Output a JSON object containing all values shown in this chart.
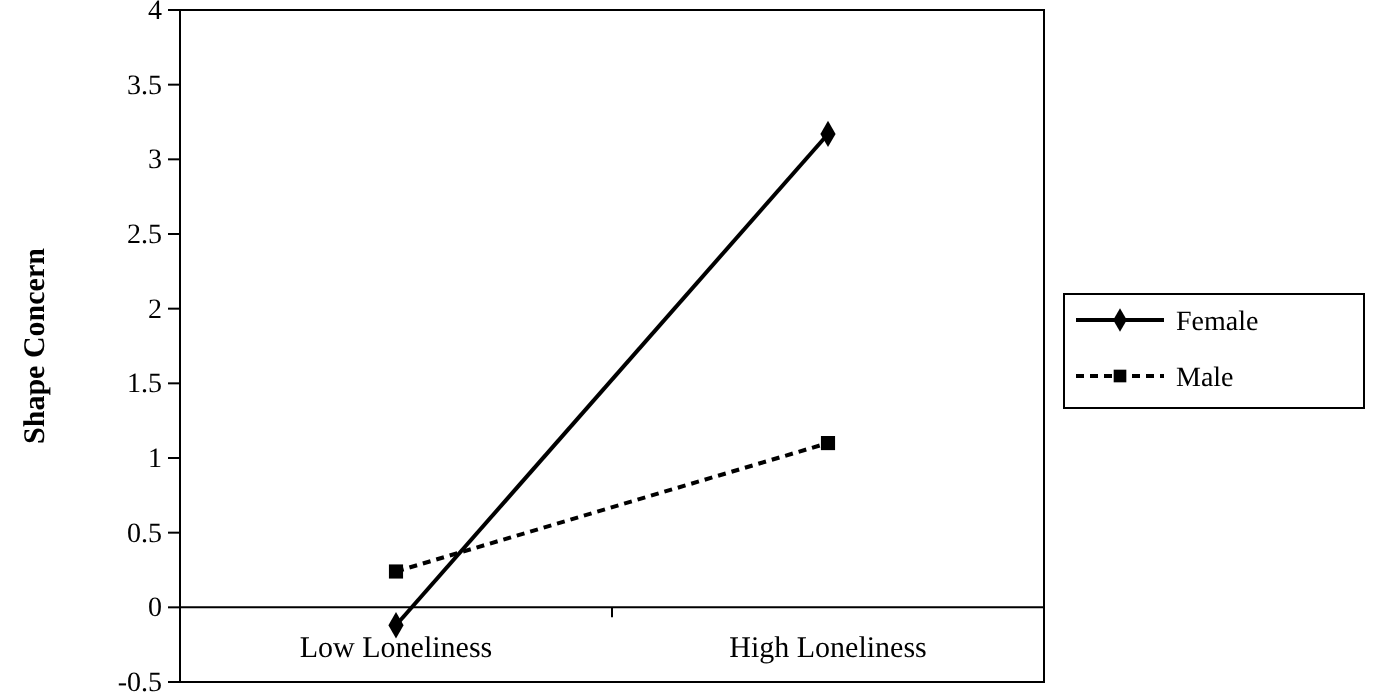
{
  "chart_data": {
    "type": "line",
    "ylabel": "Shape Concern",
    "categories": [
      "Low Loneliness",
      "High Loneliness"
    ],
    "ylim": [
      -0.5,
      4
    ],
    "yticks": [
      -0.5,
      0,
      0.5,
      1,
      1.5,
      2,
      2.5,
      3,
      3.5,
      4
    ],
    "legend": "right",
    "series": [
      {
        "name": "Female",
        "color": "#000000",
        "values": [
          -0.12,
          3.17
        ],
        "marker": "diamond",
        "line_style": "solid"
      },
      {
        "name": "Male",
        "color": "#000000",
        "values": [
          0.24,
          1.1
        ],
        "marker": "square",
        "line_style": "dashed"
      }
    ]
  }
}
